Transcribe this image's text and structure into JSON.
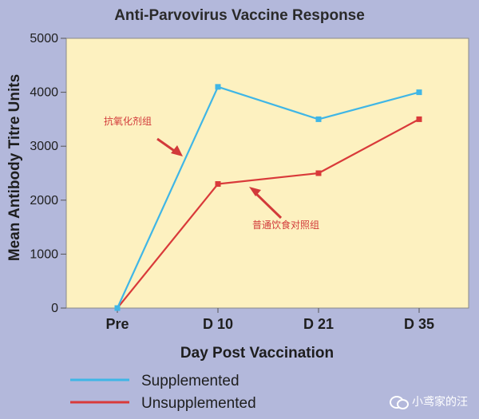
{
  "chart_data": {
    "type": "line",
    "title": "Anti-Parvovirus Vaccine Response",
    "xlabel": "Day Post Vaccination",
    "ylabel": "Mean Antibody Titre Units",
    "categories": [
      "Pre",
      "D 10",
      "D 21",
      "D 35"
    ],
    "ylim": [
      0,
      5000
    ],
    "yticks": [
      0,
      1000,
      2000,
      3000,
      4000,
      5000
    ],
    "series": [
      {
        "name": "Supplemented",
        "values": [
          0,
          4100,
          3500,
          4000
        ],
        "color": "#3fb6e6"
      },
      {
        "name": "Unsupplemented",
        "values": [
          0,
          2300,
          2500,
          3500
        ],
        "color": "#d93a3a"
      }
    ],
    "annotations": [
      {
        "text": "抗氧化剂组",
        "series": "Supplemented"
      },
      {
        "text": "普通饮食对照组",
        "series": "Unsupplemented"
      }
    ],
    "legend": "bottom-left",
    "grid": false,
    "plot_background": "#fdf1c0"
  },
  "watermark": {
    "icon": "wechat-icon",
    "text": "小鸢家的汪"
  }
}
